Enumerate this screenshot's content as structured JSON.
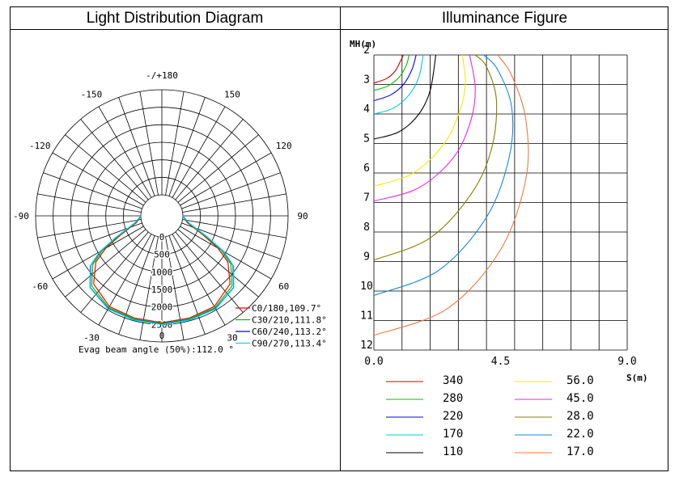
{
  "panels": {
    "left_title": "Light Distribution Diagram",
    "right_title": "Illuminance Figure"
  },
  "chart_data": [
    {
      "type": "polar",
      "title": "Light Distribution Diagram",
      "angle_labels": [
        {
          "angle": 0,
          "text": "0"
        },
        {
          "angle": 30,
          "text": "30"
        },
        {
          "angle": -30,
          "text": "-30"
        },
        {
          "angle": 60,
          "text": "60"
        },
        {
          "angle": -60,
          "text": "-60"
        },
        {
          "angle": 90,
          "text": "90"
        },
        {
          "angle": -90,
          "text": "-90"
        },
        {
          "angle": 120,
          "text": "120"
        },
        {
          "angle": -120,
          "text": "-120"
        },
        {
          "angle": 150,
          "text": "150"
        },
        {
          "angle": -150,
          "text": "-150"
        },
        {
          "angle": 180,
          "text": "-/+180"
        }
      ],
      "radial_ticks": [
        {
          "value": 0,
          "text": "0"
        },
        {
          "value": 500,
          "text": "500"
        },
        {
          "value": 1000,
          "text": "1000"
        },
        {
          "value": 1500,
          "text": "1500"
        },
        {
          "value": 2000,
          "text": "2000"
        },
        {
          "value": 2500,
          "text": "2500"
        }
      ],
      "radial_max": 3000,
      "series": [
        {
          "name": "C0/180,109.7°",
          "color": "#ff0000",
          "angles": [
            0,
            15,
            30,
            45,
            55,
            60,
            65,
            75,
            90
          ],
          "values": [
            2450,
            2420,
            2390,
            2150,
            1700,
            1250,
            700,
            150,
            0
          ]
        },
        {
          "name": "C30/210,111.8°",
          "color": "#00c000",
          "angles": [
            0,
            15,
            30,
            45,
            55,
            60,
            65,
            75,
            90
          ],
          "values": [
            2470,
            2440,
            2430,
            2230,
            1800,
            1350,
            780,
            180,
            0
          ]
        },
        {
          "name": "C60/240,113.2°",
          "color": "#0000ff",
          "angles": [
            0,
            15,
            30,
            45,
            55,
            60,
            65,
            75,
            90
          ],
          "values": [
            2490,
            2470,
            2460,
            2290,
            1880,
            1430,
            830,
            200,
            0
          ]
        },
        {
          "name": "C90/270,113.4°",
          "color": "#00e0e0",
          "angles": [
            0,
            15,
            30,
            45,
            55,
            60,
            65,
            75,
            90
          ],
          "values": [
            2500,
            2480,
            2470,
            2300,
            1900,
            1450,
            850,
            210,
            0
          ]
        }
      ],
      "annotation": "Evag beam angle (50%):112.0 °"
    },
    {
      "type": "line",
      "title": "Illuminance Figure",
      "xlabel": "S(m)",
      "ylabel": "MH(m)",
      "xlim": [
        0,
        9
      ],
      "ylim": [
        2,
        12
      ],
      "x_tick_labels": [
        {
          "x": 0,
          "text": "0.0"
        },
        {
          "x": 4.5,
          "text": "4.5"
        },
        {
          "x": 9,
          "text": "9.0"
        }
      ],
      "y_tick_labels": [
        "2",
        "3",
        "4",
        "5",
        "6",
        "7",
        "8",
        "9",
        "10",
        "11",
        "12"
      ],
      "grid": true,
      "series": [
        {
          "name": "340",
          "color": "#cc0000",
          "points": [
            [
              0,
              2.95
            ],
            [
              0.45,
              2.8
            ],
            [
              0.75,
              2.55
            ],
            [
              0.95,
              2.2
            ],
            [
              1.05,
              2
            ]
          ]
        },
        {
          "name": "280",
          "color": "#00c000",
          "points": [
            [
              0,
              3.2
            ],
            [
              0.5,
              3.05
            ],
            [
              0.9,
              2.75
            ],
            [
              1.15,
              2.35
            ],
            [
              1.25,
              2
            ]
          ]
        },
        {
          "name": "220",
          "color": "#0000ff",
          "points": [
            [
              0,
              3.55
            ],
            [
              0.6,
              3.35
            ],
            [
              1.05,
              3.0
            ],
            [
              1.35,
              2.5
            ],
            [
              1.5,
              2
            ]
          ]
        },
        {
          "name": "170",
          "color": "#00cccc",
          "points": [
            [
              0,
              4.0
            ],
            [
              0.7,
              3.8
            ],
            [
              1.25,
              3.35
            ],
            [
              1.6,
              2.75
            ],
            [
              1.75,
              2
            ]
          ]
        },
        {
          "name": "110",
          "color": "#000000",
          "points": [
            [
              0,
              4.85
            ],
            [
              0.9,
              4.6
            ],
            [
              1.6,
              4.0
            ],
            [
              2.0,
              3.2
            ],
            [
              2.2,
              2
            ]
          ]
        },
        {
          "name": "56.0",
          "color": "#eeee00",
          "points": [
            [
              0,
              6.45
            ],
            [
              1.4,
              6.0
            ],
            [
              2.5,
              5.0
            ],
            [
              3.05,
              3.9
            ],
            [
              3.25,
              3.0
            ],
            [
              3.15,
              2
            ]
          ]
        },
        {
          "name": "45.0",
          "color": "#ee22ee",
          "points": [
            [
              0,
              6.95
            ],
            [
              1.6,
              6.5
            ],
            [
              2.85,
              5.45
            ],
            [
              3.45,
              4.2
            ],
            [
              3.6,
              3.1
            ],
            [
              3.4,
              2
            ]
          ]
        },
        {
          "name": "28.0",
          "color": "#808000",
          "points": [
            [
              0,
              8.95
            ],
            [
              2.0,
              8.2
            ],
            [
              3.5,
              6.65
            ],
            [
              4.2,
              5.1
            ],
            [
              4.35,
              3.5
            ],
            [
              4.0,
              2.4
            ],
            [
              3.6,
              2
            ]
          ]
        },
        {
          "name": "22.0",
          "color": "#1a8ad4",
          "points": [
            [
              0,
              10.15
            ],
            [
              2.3,
              9.3
            ],
            [
              4.0,
              7.5
            ],
            [
              4.8,
              5.5
            ],
            [
              4.9,
              3.8
            ],
            [
              4.4,
              2.5
            ],
            [
              3.9,
              2
            ]
          ]
        },
        {
          "name": "17.0",
          "color": "#f07840",
          "points": [
            [
              0,
              11.5
            ],
            [
              2.6,
              10.6
            ],
            [
              4.5,
              8.6
            ],
            [
              5.4,
              6.2
            ],
            [
              5.4,
              4.2
            ],
            [
              4.9,
              2.7
            ],
            [
              4.4,
              2
            ]
          ]
        }
      ]
    }
  ]
}
